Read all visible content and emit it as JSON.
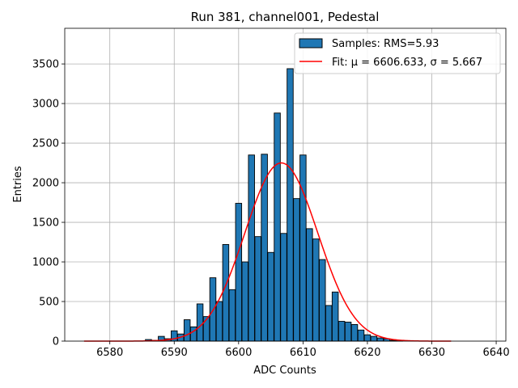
{
  "chart_data": {
    "type": "bar",
    "title": "Run 381, channel001, Pedestal",
    "xlabel": "ADC Counts",
    "ylabel": "Entries",
    "xlim": [
      6573,
      6641.5
    ],
    "ylim": [
      0,
      3950
    ],
    "xticks": [
      6580,
      6590,
      6600,
      6610,
      6620,
      6630,
      6640
    ],
    "yticks": [
      0,
      500,
      1000,
      1500,
      2000,
      2500,
      3000,
      3500
    ],
    "grid": true,
    "legend_position": "top-right",
    "histogram": {
      "name": "Samples: RMS=5.93",
      "color": "#1f77b4",
      "bin_width": 0.95,
      "bins": [
        {
          "x": 6586,
          "value": 20
        },
        {
          "x": 6587,
          "value": 10
        },
        {
          "x": 6588,
          "value": 60
        },
        {
          "x": 6589,
          "value": 30
        },
        {
          "x": 6590,
          "value": 130
        },
        {
          "x": 6591,
          "value": 90
        },
        {
          "x": 6592,
          "value": 270
        },
        {
          "x": 6593,
          "value": 180
        },
        {
          "x": 6594,
          "value": 470
        },
        {
          "x": 6595,
          "value": 310
        },
        {
          "x": 6596,
          "value": 800
        },
        {
          "x": 6597,
          "value": 500
        },
        {
          "x": 6598,
          "value": 1220
        },
        {
          "x": 6599,
          "value": 650
        },
        {
          "x": 6600,
          "value": 1740
        },
        {
          "x": 6601,
          "value": 1000
        },
        {
          "x": 6602,
          "value": 2350
        },
        {
          "x": 6603,
          "value": 1320
        },
        {
          "x": 6604,
          "value": 2360
        },
        {
          "x": 6605,
          "value": 1120
        },
        {
          "x": 6606,
          "value": 2880
        },
        {
          "x": 6607,
          "value": 1360
        },
        {
          "x": 6608,
          "value": 3440
        },
        {
          "x": 6609,
          "value": 1800
        },
        {
          "x": 6610,
          "value": 2350
        },
        {
          "x": 6611,
          "value": 1420
        },
        {
          "x": 6612,
          "value": 1290
        },
        {
          "x": 6613,
          "value": 1030
        },
        {
          "x": 6614,
          "value": 450
        },
        {
          "x": 6615,
          "value": 620
        },
        {
          "x": 6616,
          "value": 250
        },
        {
          "x": 6617,
          "value": 240
        },
        {
          "x": 6618,
          "value": 210
        },
        {
          "x": 6619,
          "value": 140
        },
        {
          "x": 6620,
          "value": 80
        },
        {
          "x": 6621,
          "value": 60
        },
        {
          "x": 6622,
          "value": 40
        },
        {
          "x": 6623,
          "value": 30
        },
        {
          "x": 6624,
          "value": 10
        },
        {
          "x": 6625,
          "value": 10
        }
      ]
    },
    "fit": {
      "name": "Fit: μ = 6606.633, σ = 5.667",
      "color": "#ff0000",
      "mu": 6606.633,
      "sigma": 5.667,
      "amplitude": 2250,
      "x_range": [
        6576,
        6633
      ]
    }
  }
}
